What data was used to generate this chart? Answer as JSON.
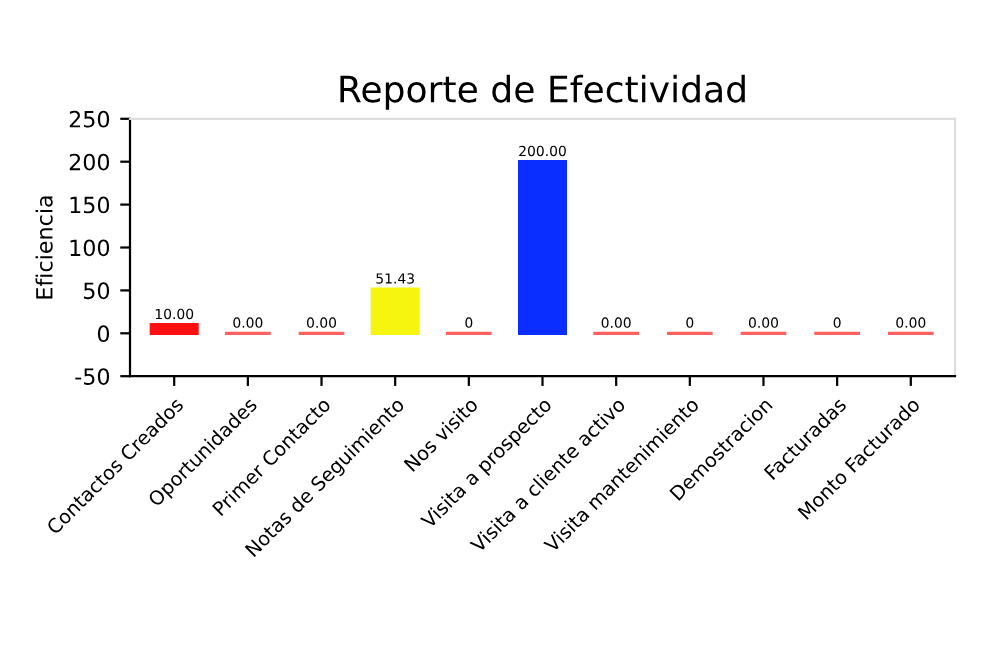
{
  "chart_data": {
    "type": "bar",
    "title": "Reporte de Efectividad",
    "ylabel": "Eficiencia",
    "categories": [
      "Contactos Creados",
      "Oportunidades",
      "Primer Contacto",
      "Notas de Seguimiento",
      "Nos visito",
      "Visita a prospecto",
      "Visita a cliente activo",
      "Visita mantenimiento",
      "Demostracion",
      "Facturadas",
      "Monto Facturado"
    ],
    "values": [
      10,
      0,
      0,
      51.43,
      0,
      200,
      0,
      0,
      0,
      0,
      0
    ],
    "value_labels": [
      "10.00",
      "0.00",
      "0.00",
      "51.43",
      "0",
      "200.00",
      "0.00",
      "0",
      "0.00",
      "0",
      "0.00"
    ],
    "colors": [
      "#ff1010",
      "#ff6060",
      "#ff6060",
      "#f5f510",
      "#ff6060",
      "#0a2eff",
      "#ff6060",
      "#ff6060",
      "#ff6060",
      "#ff6060",
      "#ff6060"
    ],
    "ylim": [
      -50,
      250
    ],
    "yticks": [
      -50,
      0,
      50,
      100,
      150,
      200,
      250
    ],
    "grid": false,
    "legend": false
  }
}
